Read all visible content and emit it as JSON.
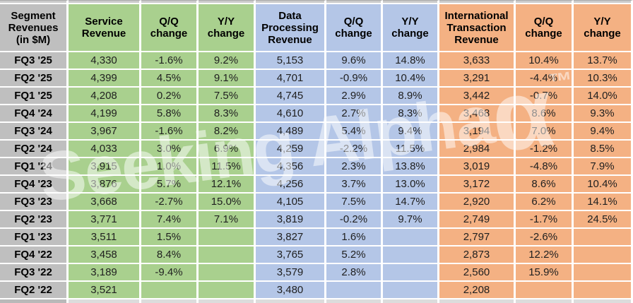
{
  "colors": {
    "label_bg": "#BFBFBF",
    "service_bg": "#A9D08E",
    "data_processing_bg": "#B4C6E7",
    "international_bg": "#F4B183",
    "grid": "#FFFFFF",
    "header_text": "#000000",
    "cell_text": "#1F1F1F",
    "top_strip": "#CBCBCB",
    "bottom_strip_label": "#B9B9B9",
    "bottom_strip_data": "#DCDCDC"
  },
  "watermark": {
    "text": "Seeking Alpha",
    "alpha_symbol": "α",
    "trademark": "™"
  },
  "chart_data": {
    "type": "table",
    "title": "Segment Revenues (in $M)",
    "corner_header": "Segment\nRevenues\n(in $M)",
    "sub_headers": {
      "qq": "Q/Q\nchange",
      "yy": "Y/Y\nchange"
    },
    "groups": [
      {
        "key": "service",
        "header": "Service\nRevenue",
        "color": "#A9D08E"
      },
      {
        "key": "data_processing",
        "header": "Data\nProcessing\nRevenue",
        "color": "#B4C6E7"
      },
      {
        "key": "international",
        "header": "International\nTransaction\nRevenue",
        "color": "#F4B183"
      }
    ],
    "rows": [
      {
        "quarter": "FQ3 '25",
        "service": {
          "revenue": "4,330",
          "qq": "-1.6%",
          "yy": "9.2%"
        },
        "data_processing": {
          "revenue": "5,153",
          "qq": "9.6%",
          "yy": "14.8%"
        },
        "international": {
          "revenue": "3,633",
          "qq": "10.4%",
          "yy": "13.7%"
        }
      },
      {
        "quarter": "FQ2 '25",
        "service": {
          "revenue": "4,399",
          "qq": "4.5%",
          "yy": "9.1%"
        },
        "data_processing": {
          "revenue": "4,701",
          "qq": "-0.9%",
          "yy": "10.4%"
        },
        "international": {
          "revenue": "3,291",
          "qq": "-4.4%",
          "yy": "10.3%"
        }
      },
      {
        "quarter": "FQ1 '25",
        "service": {
          "revenue": "4,208",
          "qq": "0.2%",
          "yy": "7.5%"
        },
        "data_processing": {
          "revenue": "4,745",
          "qq": "2.9%",
          "yy": "8.9%"
        },
        "international": {
          "revenue": "3,442",
          "qq": "-0.7%",
          "yy": "14.0%"
        }
      },
      {
        "quarter": "FQ4 '24",
        "service": {
          "revenue": "4,199",
          "qq": "5.8%",
          "yy": "8.3%"
        },
        "data_processing": {
          "revenue": "4,610",
          "qq": "2.7%",
          "yy": "8.3%"
        },
        "international": {
          "revenue": "3,468",
          "qq": "8.6%",
          "yy": "9.3%"
        }
      },
      {
        "quarter": "FQ3 '24",
        "service": {
          "revenue": "3,967",
          "qq": "-1.6%",
          "yy": "8.2%"
        },
        "data_processing": {
          "revenue": "4,489",
          "qq": "5.4%",
          "yy": "9.4%"
        },
        "international": {
          "revenue": "3,194",
          "qq": "7.0%",
          "yy": "9.4%"
        }
      },
      {
        "quarter": "FQ2 '24",
        "service": {
          "revenue": "4,033",
          "qq": "3.0%",
          "yy": "6.9%"
        },
        "data_processing": {
          "revenue": "4,259",
          "qq": "-2.2%",
          "yy": "11.5%"
        },
        "international": {
          "revenue": "2,984",
          "qq": "-1.2%",
          "yy": "8.5%"
        }
      },
      {
        "quarter": "FQ1 '24",
        "service": {
          "revenue": "3,915",
          "qq": "1.0%",
          "yy": "11.5%"
        },
        "data_processing": {
          "revenue": "4,356",
          "qq": "2.3%",
          "yy": "13.8%"
        },
        "international": {
          "revenue": "3,019",
          "qq": "-4.8%",
          "yy": "7.9%"
        }
      },
      {
        "quarter": "FQ4 '23",
        "service": {
          "revenue": "3,876",
          "qq": "5.7%",
          "yy": "12.1%"
        },
        "data_processing": {
          "revenue": "4,256",
          "qq": "3.7%",
          "yy": "13.0%"
        },
        "international": {
          "revenue": "3,172",
          "qq": "8.6%",
          "yy": "10.4%"
        }
      },
      {
        "quarter": "FQ3 '23",
        "service": {
          "revenue": "3,668",
          "qq": "-2.7%",
          "yy": "15.0%"
        },
        "data_processing": {
          "revenue": "4,105",
          "qq": "7.5%",
          "yy": "14.7%"
        },
        "international": {
          "revenue": "2,920",
          "qq": "6.2%",
          "yy": "14.1%"
        }
      },
      {
        "quarter": "FQ2 '23",
        "service": {
          "revenue": "3,771",
          "qq": "7.4%",
          "yy": "7.1%"
        },
        "data_processing": {
          "revenue": "3,819",
          "qq": "-0.2%",
          "yy": "9.7%"
        },
        "international": {
          "revenue": "2,749",
          "qq": "-1.7%",
          "yy": "24.5%"
        }
      },
      {
        "quarter": "FQ1 '23",
        "service": {
          "revenue": "3,511",
          "qq": "1.5%",
          "yy": ""
        },
        "data_processing": {
          "revenue": "3,827",
          "qq": "1.6%",
          "yy": ""
        },
        "international": {
          "revenue": "2,797",
          "qq": "-2.6%",
          "yy": ""
        }
      },
      {
        "quarter": "FQ4 '22",
        "service": {
          "revenue": "3,458",
          "qq": "8.4%",
          "yy": ""
        },
        "data_processing": {
          "revenue": "3,765",
          "qq": "5.2%",
          "yy": ""
        },
        "international": {
          "revenue": "2,873",
          "qq": "12.2%",
          "yy": ""
        }
      },
      {
        "quarter": "FQ3 '22",
        "service": {
          "revenue": "3,189",
          "qq": "-9.4%",
          "yy": ""
        },
        "data_processing": {
          "revenue": "3,579",
          "qq": "2.8%",
          "yy": ""
        },
        "international": {
          "revenue": "2,560",
          "qq": "15.9%",
          "yy": ""
        }
      },
      {
        "quarter": "FQ2 '22",
        "service": {
          "revenue": "3,521",
          "qq": "",
          "yy": ""
        },
        "data_processing": {
          "revenue": "3,480",
          "qq": "",
          "yy": ""
        },
        "international": {
          "revenue": "2,208",
          "qq": "",
          "yy": ""
        }
      }
    ]
  }
}
